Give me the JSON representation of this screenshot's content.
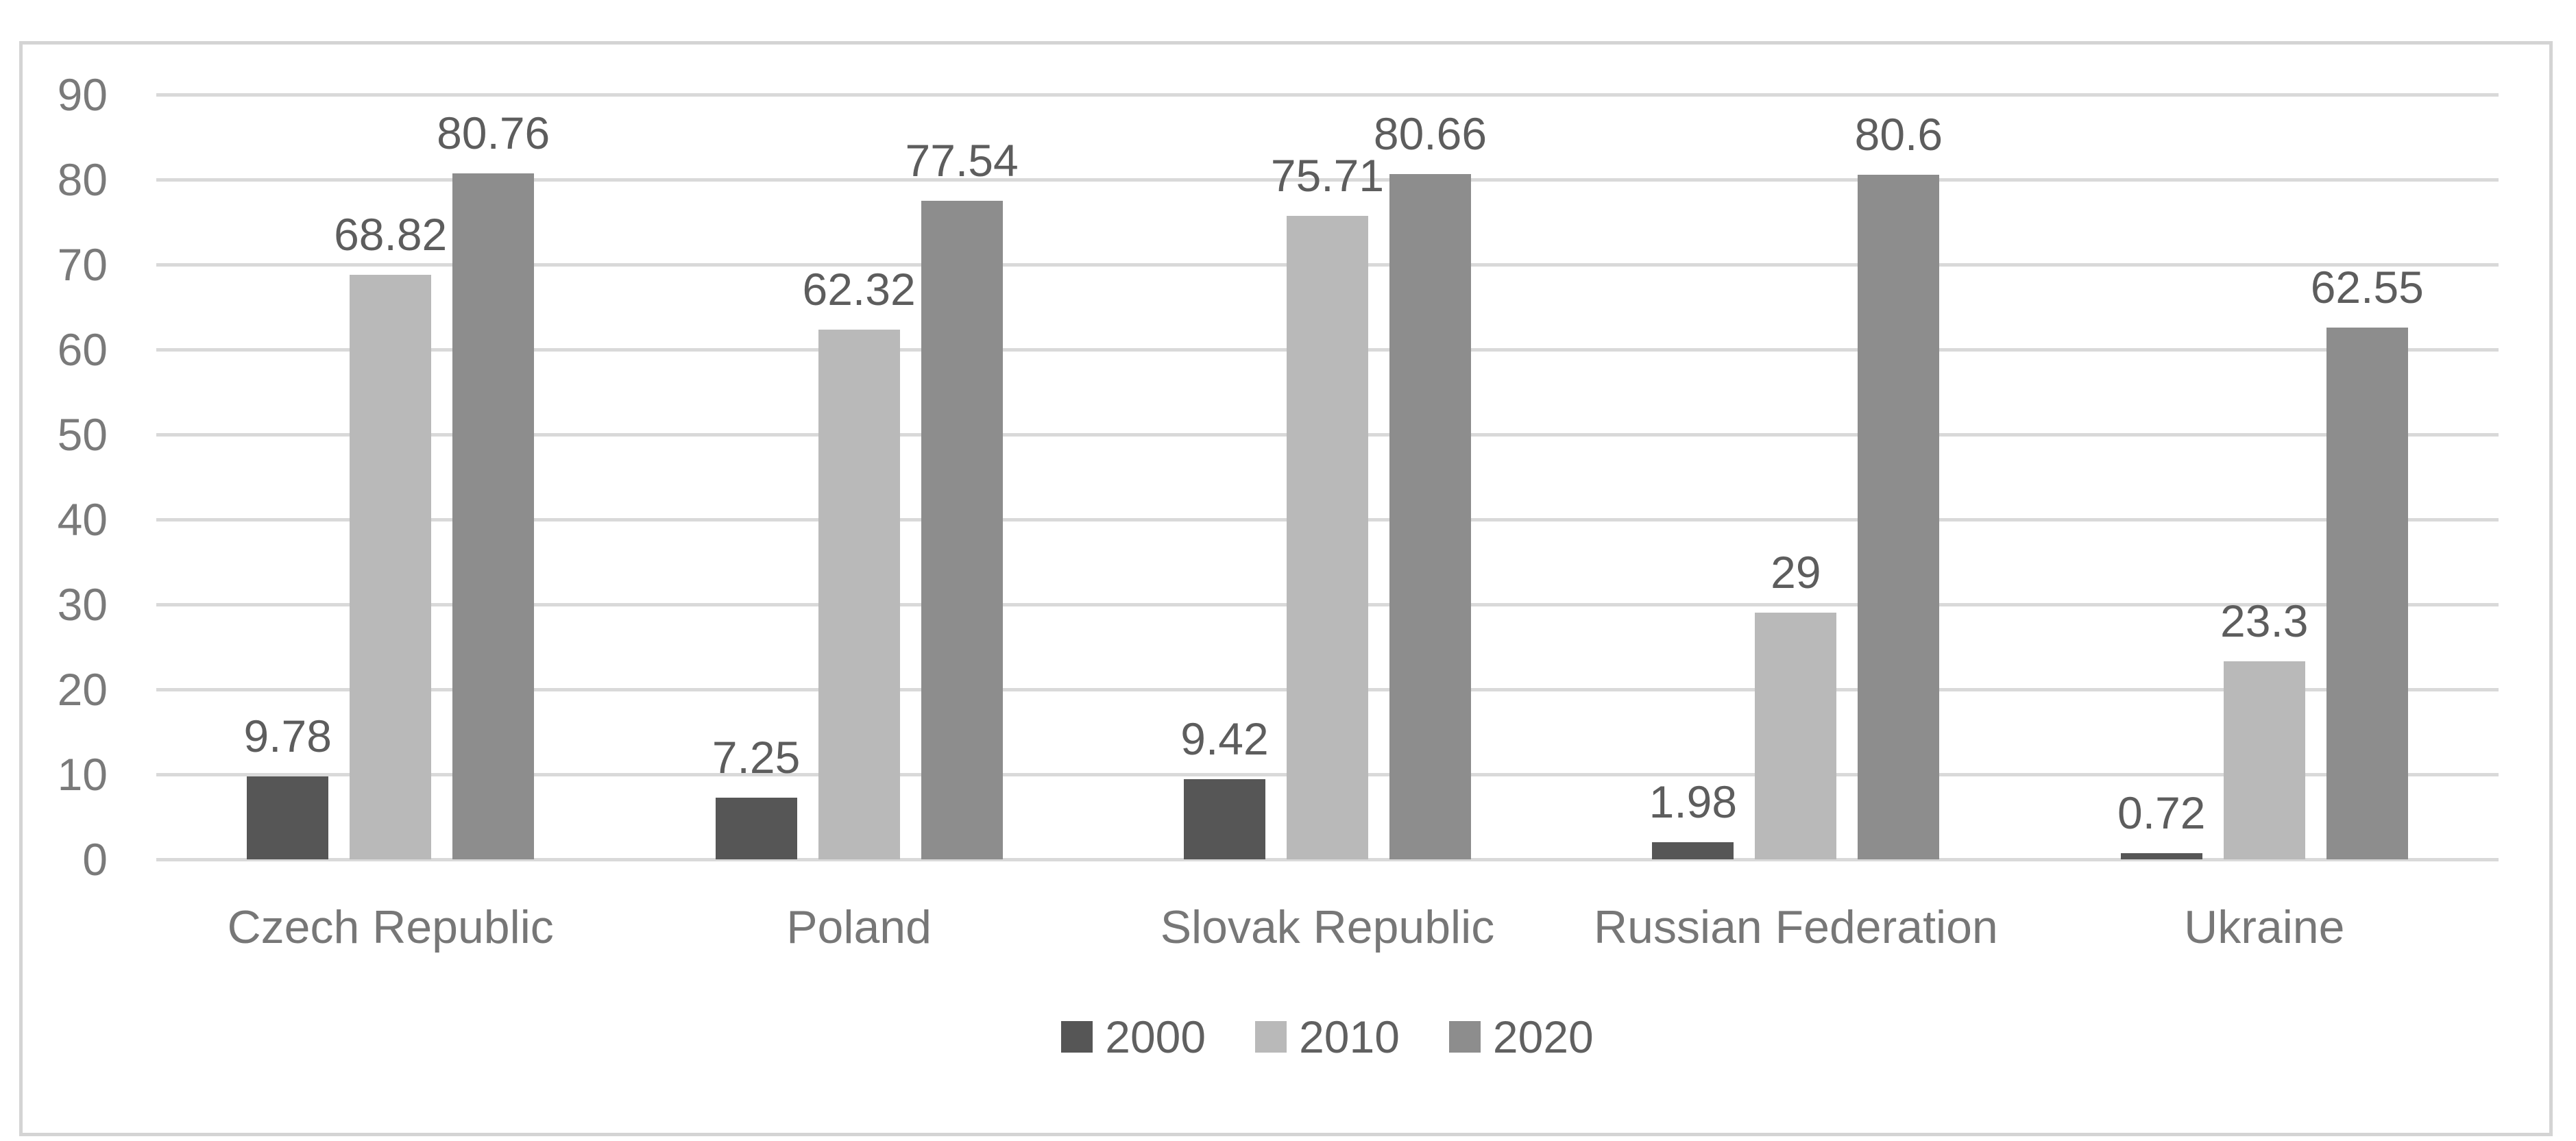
{
  "chart_data": {
    "type": "bar",
    "categories": [
      "Czech Republic",
      "Poland",
      "Slovak Republic",
      "Russian Federation",
      "Ukraine"
    ],
    "series": [
      {
        "name": "2000",
        "color": "#565656",
        "values": [
          9.78,
          7.25,
          9.42,
          1.98,
          0.72
        ]
      },
      {
        "name": "2010",
        "color": "#b9b9b9",
        "values": [
          68.82,
          62.32,
          75.71,
          29,
          23.3
        ]
      },
      {
        "name": "2020",
        "color": "#8d8d8d",
        "values": [
          80.76,
          77.54,
          80.66,
          80.6,
          62.55
        ]
      }
    ],
    "data_labels": [
      [
        "9.78",
        "68.82",
        "80.76"
      ],
      [
        "7.25",
        "62.32",
        "77.54"
      ],
      [
        "9.42",
        "75.71",
        "80.66"
      ],
      [
        "1.98",
        "29",
        "80.6"
      ],
      [
        "0.72",
        "23.3",
        "62.55"
      ]
    ],
    "title": "",
    "xlabel": "",
    "ylabel": "",
    "yticks": [
      90,
      80,
      70,
      60,
      50,
      40,
      30,
      20,
      10,
      0
    ],
    "ylim": [
      0,
      90
    ],
    "grid": true,
    "legend_position": "bottom"
  },
  "style": {
    "gridline_color": "#d9d9d9",
    "frame_color": "#d4d4d4",
    "tick_text_color": "#7a7a7a",
    "category_text_color": "#777777",
    "data_label_color": "#5d5d5d",
    "legend_text_color": "#606060",
    "background": "#ffffff"
  }
}
